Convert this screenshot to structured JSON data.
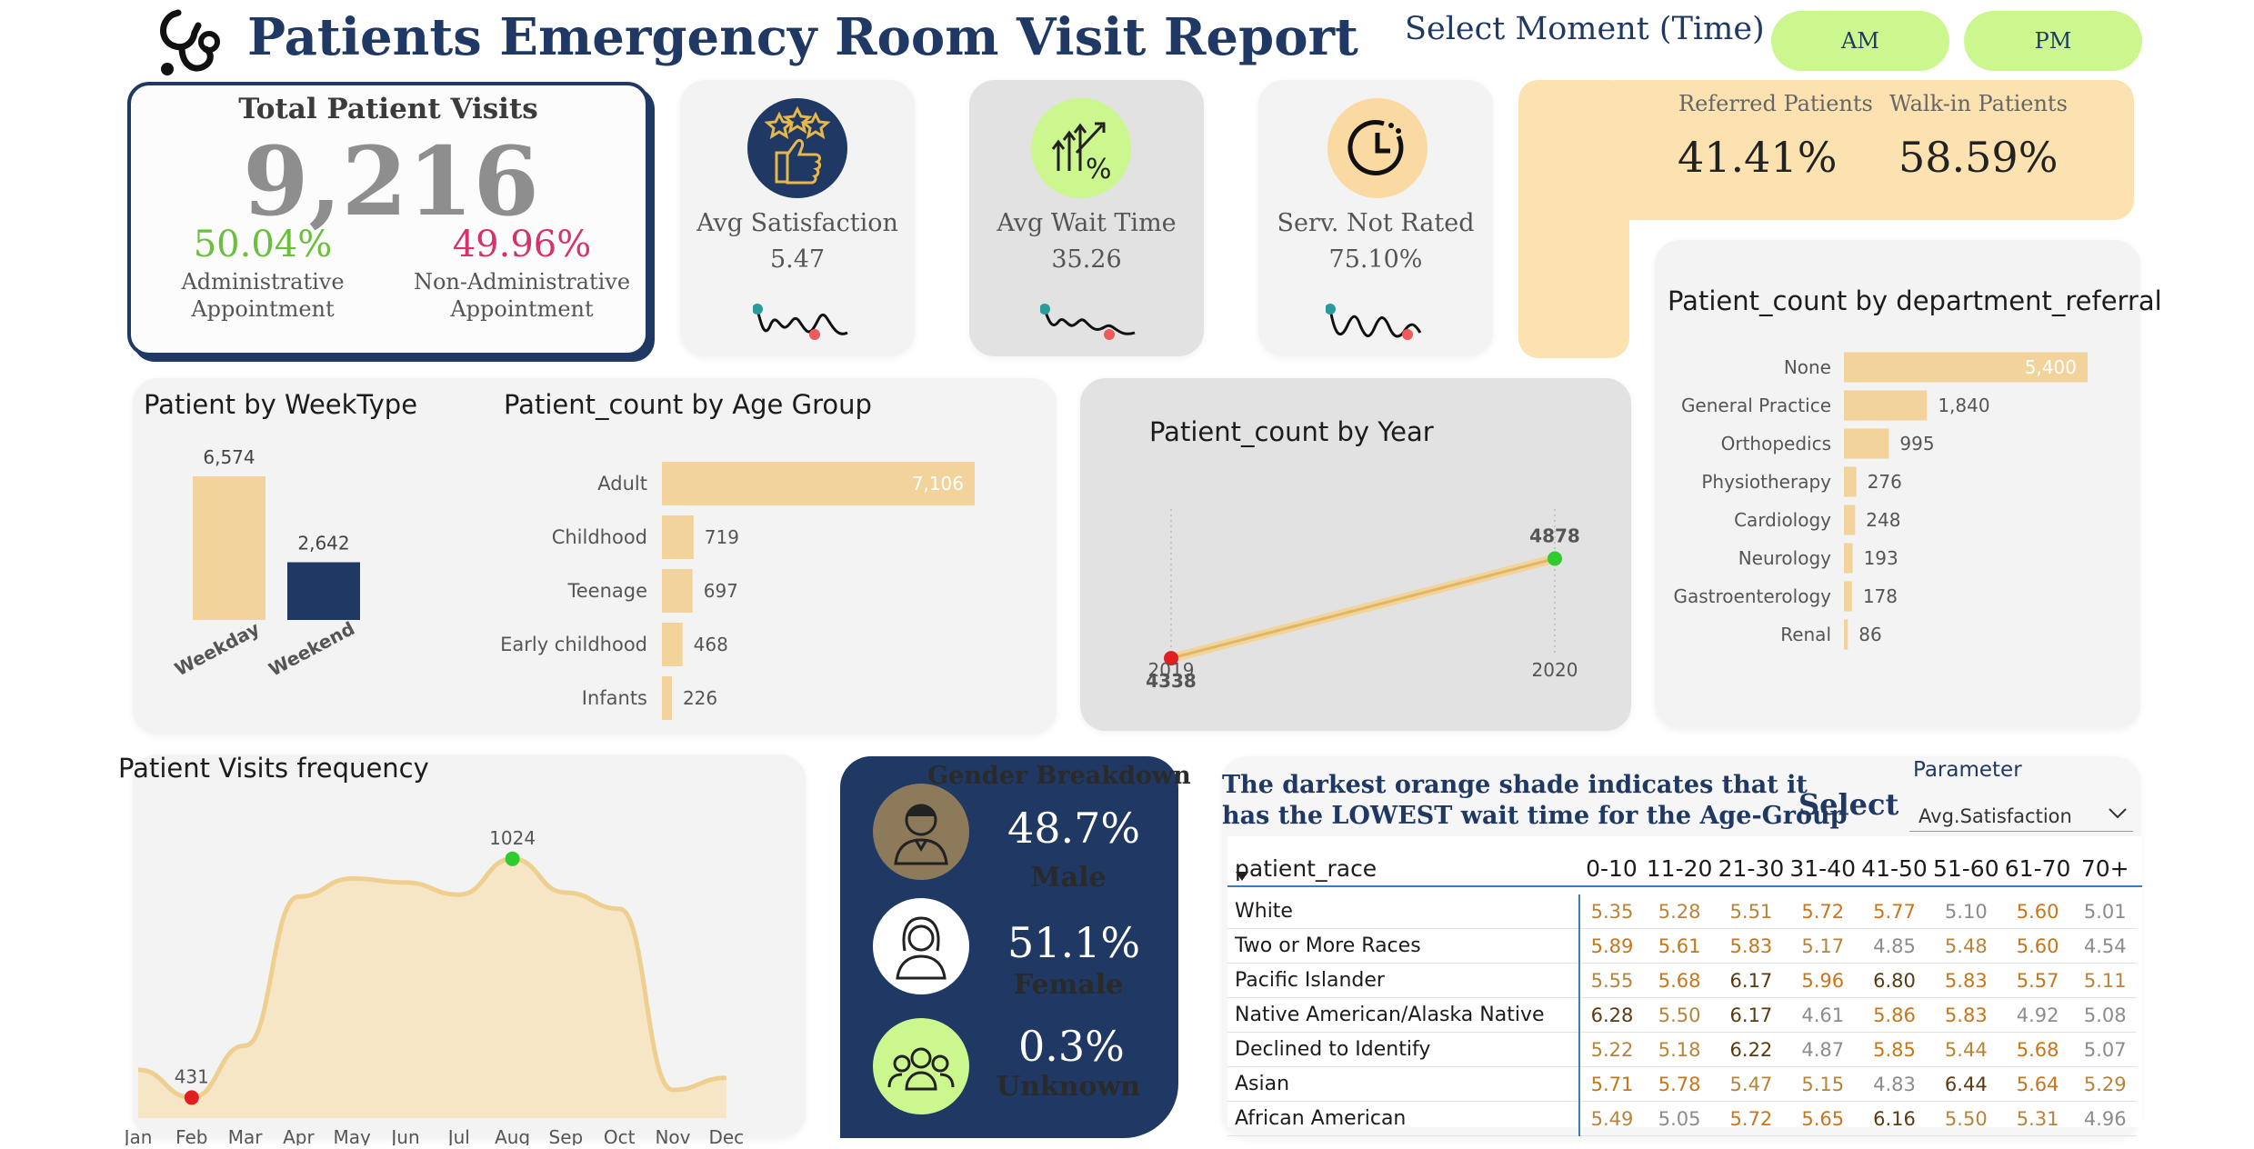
{
  "header": {
    "title": "Patients Emergency Room Visit Report",
    "select_moment_label": "Select Moment (Time)",
    "am_label": "AM",
    "pm_label": "PM",
    "logo_icon": "stethoscope-icon"
  },
  "total_visits": {
    "title": "Total Patient Visits",
    "value": "9,216",
    "admin_pct": "50.04%",
    "admin_label_1": "Administrative",
    "admin_label_2": "Appointment",
    "nonadmin_pct": "49.96%",
    "nonadmin_label_1": "Non-Administrative",
    "nonadmin_label_2": "Appointment"
  },
  "kpis": [
    {
      "label": "Avg Satisfaction",
      "value": "5.47",
      "icon": "thumbs-up-stars-icon"
    },
    {
      "label": "Avg Wait Time",
      "value": "35.26",
      "icon": "growth-percent-icon"
    },
    {
      "label": "Serv. Not Rated",
      "value": "75.10%",
      "icon": "clock-icon"
    }
  ],
  "referral": {
    "referred_label": "Referred Patients",
    "referred_value": "41.41%",
    "walkin_label": "Walk-in Patients",
    "walkin_value": "58.59%"
  },
  "colors": {
    "navy": "#1f3864",
    "tan": "#f2d39b",
    "light_green": "#ccf78f",
    "green_text": "#6abf3b",
    "pink_text": "#d6336c",
    "peach": "#fbe2b0"
  },
  "charts": {
    "weektype_title": "Patient by WeekType",
    "agegroup_title": "Patient_count by Age Group",
    "year_title": "Patient_count by Year",
    "dept_title": "Patient_count by department_referral",
    "freq_title": "Patient Visits frequency"
  },
  "chart_data": [
    {
      "type": "bar",
      "title": "Patient by WeekType",
      "categories": [
        "Weekday",
        "Weekend"
      ],
      "values": [
        6574,
        2642
      ],
      "value_labels": [
        "6,574",
        "2,642"
      ]
    },
    {
      "type": "bar",
      "title": "Patient_count by Age Group",
      "orientation": "horizontal",
      "categories": [
        "Adult",
        "Childhood",
        "Teenage",
        "Early childhood",
        "Infants"
      ],
      "values": [
        7106,
        719,
        697,
        468,
        226
      ],
      "value_labels": [
        "7,106",
        "719",
        "697",
        "468",
        "226"
      ]
    },
    {
      "type": "line",
      "title": "Patient_count by Year",
      "x": [
        "2019",
        "2020"
      ],
      "values": [
        4338,
        4878
      ],
      "value_labels": [
        "4338",
        "4878"
      ]
    },
    {
      "type": "bar",
      "title": "Patient_count by department_referral",
      "orientation": "horizontal",
      "categories": [
        "None",
        "General Practice",
        "Orthopedics",
        "Physiotherapy",
        "Cardiology",
        "Neurology",
        "Gastroenterology",
        "Renal"
      ],
      "values": [
        5400,
        1840,
        995,
        276,
        248,
        193,
        178,
        86
      ],
      "value_labels": [
        "5,400",
        "1,840",
        "995",
        "276",
        "248",
        "193",
        "178",
        "86"
      ]
    },
    {
      "type": "area",
      "title": "Patient Visits frequency",
      "categories": [
        "Jan",
        "Feb",
        "Mar",
        "Apr",
        "May",
        "Jun",
        "Jul",
        "Aug",
        "Sep",
        "Oct",
        "Nov",
        "Dec"
      ],
      "values": [
        500,
        431,
        560,
        930,
        975,
        965,
        935,
        1024,
        940,
        900,
        450,
        480
      ],
      "ylim": [
        380,
        1080
      ],
      "annotations": [
        {
          "x": "Feb",
          "label": "431"
        },
        {
          "x": "Aug",
          "label": "1024"
        }
      ]
    }
  ],
  "gender": {
    "title": "Gender Breakdown",
    "items": [
      {
        "pct": "48.7%",
        "label": "Male",
        "icon": "male-user-icon"
      },
      {
        "pct": "51.1%",
        "label": "Female",
        "icon": "female-user-icon"
      },
      {
        "pct": "0.3%",
        "label": "Unknown",
        "icon": "group-users-icon"
      }
    ]
  },
  "heatmap": {
    "note_line1": "The darkest orange shade indicates that it",
    "note_line2": "has the LOWEST wait time for the Age-Group",
    "select_label": "Select",
    "parameter_label": "Parameter",
    "parameter_value": "Avg.Satisfaction",
    "row_header": "patient_race",
    "columns": [
      "0-10",
      "11-20",
      "21-30",
      "31-40",
      "41-50",
      "51-60",
      "61-70",
      "70+"
    ],
    "rows": [
      {
        "race": "White",
        "values": [
          "5.35",
          "5.28",
          "5.51",
          "5.72",
          "5.77",
          "5.10",
          "5.60",
          "5.01"
        ]
      },
      {
        "race": "Two or More Races",
        "values": [
          "5.89",
          "5.61",
          "5.83",
          "5.17",
          "4.85",
          "5.48",
          "5.60",
          "4.54"
        ]
      },
      {
        "race": "Pacific Islander",
        "values": [
          "5.55",
          "5.68",
          "6.17",
          "5.96",
          "6.80",
          "5.83",
          "5.57",
          "5.11"
        ]
      },
      {
        "race": "Native American/Alaska Native",
        "values": [
          "6.28",
          "5.50",
          "6.17",
          "4.61",
          "5.86",
          "5.83",
          "4.92",
          "5.08"
        ]
      },
      {
        "race": "Declined to Identify",
        "values": [
          "5.22",
          "5.18",
          "6.22",
          "4.87",
          "5.85",
          "5.44",
          "5.68",
          "5.07"
        ]
      },
      {
        "race": "Asian",
        "values": [
          "5.71",
          "5.78",
          "5.47",
          "5.15",
          "4.83",
          "6.44",
          "5.64",
          "5.29"
        ]
      },
      {
        "race": "African American",
        "values": [
          "5.49",
          "5.05",
          "5.72",
          "5.65",
          "6.16",
          "5.50",
          "5.31",
          "4.96"
        ]
      }
    ]
  }
}
